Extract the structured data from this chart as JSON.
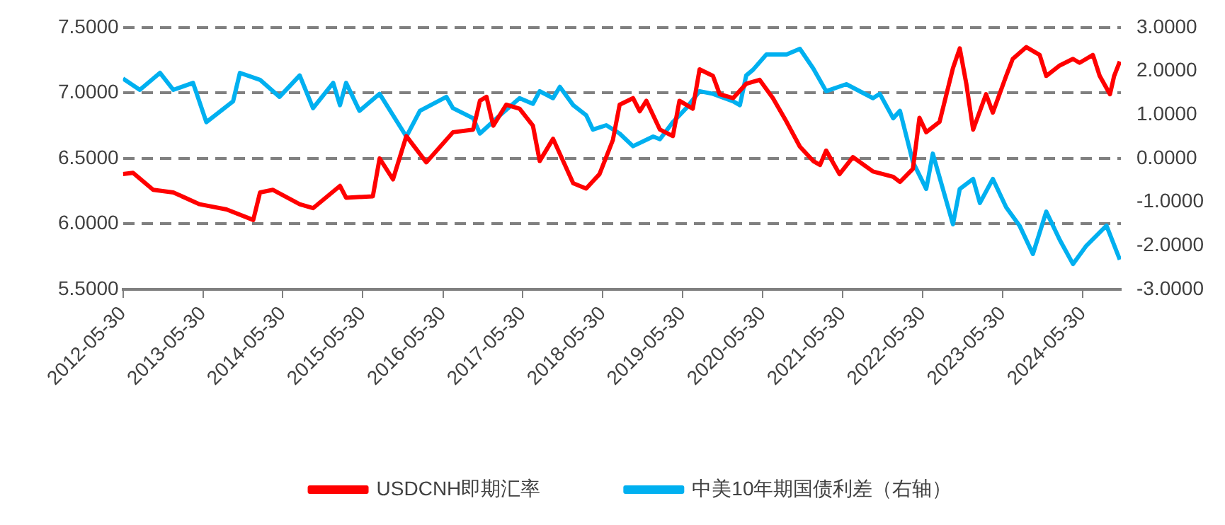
{
  "chart_data": {
    "type": "line",
    "xlim": [
      "2012-05-30",
      "2024-11-20"
    ],
    "xticks": [
      "2012-05-30",
      "2013-05-30",
      "2014-05-30",
      "2015-05-30",
      "2016-05-30",
      "2017-05-30",
      "2018-05-30",
      "2019-05-30",
      "2020-05-30",
      "2021-05-30",
      "2022-05-30",
      "2023-05-30",
      "2024-05-30"
    ],
    "ylim": [
      5.5,
      7.5
    ],
    "yticks": [
      {
        "value": 5.5,
        "label": "5.5000"
      },
      {
        "value": 6,
        "label": "6.0000"
      },
      {
        "value": 6.5,
        "label": "6.5000"
      },
      {
        "value": 7,
        "label": "7.0000"
      },
      {
        "value": 7.5,
        "label": "7.5000"
      }
    ],
    "y2lim": [
      -3,
      3
    ],
    "y2ticks": [
      {
        "value": -3,
        "label": "-3.0000"
      },
      {
        "value": -2,
        "label": "-2.0000"
      },
      {
        "value": -1,
        "label": "-1.0000"
      },
      {
        "value": 0,
        "label": "0.0000"
      },
      {
        "value": 1,
        "label": "1.0000"
      },
      {
        "value": 2,
        "label": "2.0000"
      },
      {
        "value": 3,
        "label": "3.0000"
      }
    ],
    "grid": "y",
    "legend": "bottom",
    "marker": "none",
    "line_style": "solid",
    "series": [
      {
        "name": "USDCNH即期汇率",
        "color": "#ff0000",
        "x": [
          "2012-05-30",
          "2012-07-15",
          "2012-10-15",
          "2013-01-15",
          "2013-05-15",
          "2013-09-15",
          "2014-01-15",
          "2014-02-15",
          "2014-04-15",
          "2014-08-15",
          "2014-10-15",
          "2015-02-15",
          "2015-03-15",
          "2015-07-15",
          "2015-08-15",
          "2015-10-15",
          "2015-12-15",
          "2016-03-15",
          "2016-07-15",
          "2016-10-15",
          "2016-11-15",
          "2016-12-15",
          "2017-01-15",
          "2017-03-15",
          "2017-05-15",
          "2017-07-15",
          "2017-08-15",
          "2017-10-15",
          "2018-01-15",
          "2018-03-15",
          "2018-05-15",
          "2018-07-15",
          "2018-08-15",
          "2018-10-15",
          "2018-11-15",
          "2018-12-15",
          "2019-02-15",
          "2019-04-15",
          "2019-05-15",
          "2019-07-15",
          "2019-08-15",
          "2019-10-15",
          "2019-11-15",
          "2020-01-15",
          "2020-03-15",
          "2020-05-15",
          "2020-07-15",
          "2020-09-15",
          "2020-11-15",
          "2021-01-15",
          "2021-02-15",
          "2021-03-15",
          "2021-05-15",
          "2021-07-15",
          "2021-10-15",
          "2022-01-15",
          "2022-02-15",
          "2022-04-15",
          "2022-05-15",
          "2022-06-15",
          "2022-08-15",
          "2022-10-15",
          "2022-11-15",
          "2022-12-15",
          "2023-01-15",
          "2023-03-15",
          "2023-04-15",
          "2023-06-15",
          "2023-07-15",
          "2023-09-15",
          "2023-11-15",
          "2023-12-15",
          "2024-02-15",
          "2024-04-15",
          "2024-05-15",
          "2024-07-15",
          "2024-08-15",
          "2024-10-01",
          "2024-10-20",
          "2024-11-15"
        ],
        "values": [
          6.38,
          6.39,
          6.26,
          6.24,
          6.15,
          6.11,
          6.03,
          6.24,
          6.26,
          6.15,
          6.12,
          6.29,
          6.2,
          6.21,
          6.5,
          6.34,
          6.67,
          6.47,
          6.7,
          6.72,
          6.94,
          6.97,
          6.75,
          6.91,
          6.88,
          6.75,
          6.48,
          6.65,
          6.31,
          6.27,
          6.38,
          6.64,
          6.91,
          6.96,
          6.86,
          6.94,
          6.72,
          6.67,
          6.94,
          6.88,
          7.18,
          7.13,
          6.99,
          6.96,
          7.07,
          7.1,
          6.96,
          6.78,
          6.59,
          6.48,
          6.45,
          6.56,
          6.38,
          6.51,
          6.4,
          6.36,
          6.32,
          6.42,
          6.81,
          6.7,
          6.78,
          7.19,
          7.34,
          7.07,
          6.72,
          6.99,
          6.85,
          7.13,
          7.26,
          7.35,
          7.29,
          7.13,
          7.21,
          7.26,
          7.23,
          7.29,
          7.13,
          6.99,
          7.13,
          7.24
        ]
      },
      {
        "name": "中美10年期国债利差（右轴）",
        "color": "#00b0f0",
        "axis": "y2",
        "x": [
          "2012-05-30",
          "2012-08-15",
          "2012-11-15",
          "2013-01-15",
          "2013-04-15",
          "2013-06-15",
          "2013-10-15",
          "2013-11-15",
          "2014-02-15",
          "2014-05-15",
          "2014-08-15",
          "2014-10-15",
          "2015-01-15",
          "2015-02-15",
          "2015-03-15",
          "2015-05-15",
          "2015-08-15",
          "2015-12-15",
          "2016-02-15",
          "2016-06-15",
          "2016-07-15",
          "2016-10-15",
          "2016-11-15",
          "2017-02-15",
          "2017-05-15",
          "2017-07-15",
          "2017-08-15",
          "2017-10-15",
          "2017-11-15",
          "2018-01-15",
          "2018-03-15",
          "2018-04-15",
          "2018-06-15",
          "2018-08-15",
          "2018-10-15",
          "2019-01-15",
          "2019-02-15",
          "2019-04-15",
          "2019-06-15",
          "2019-08-15",
          "2019-10-15",
          "2020-01-15",
          "2020-02-15",
          "2020-03-15",
          "2020-04-15",
          "2020-06-15",
          "2020-09-15",
          "2020-11-15",
          "2021-01-15",
          "2021-03-15",
          "2021-06-15",
          "2021-10-15",
          "2021-11-15",
          "2022-01-15",
          "2022-02-15",
          "2022-04-15",
          "2022-06-15",
          "2022-07-15",
          "2022-10-15",
          "2022-11-15",
          "2023-01-15",
          "2023-02-15",
          "2023-04-15",
          "2023-06-15",
          "2023-08-15",
          "2023-10-15",
          "2023-12-15",
          "2024-02-15",
          "2024-04-15",
          "2024-06-15",
          "2024-09-15",
          "2024-11-15"
        ],
        "values": [
          1.83,
          1.57,
          1.96,
          1.57,
          1.73,
          0.83,
          1.31,
          1.96,
          1.8,
          1.41,
          1.9,
          1.15,
          1.73,
          1.22,
          1.73,
          1.09,
          1.48,
          0.5,
          1.09,
          1.41,
          1.15,
          0.92,
          0.57,
          0.99,
          1.38,
          1.25,
          1.54,
          1.38,
          1.64,
          1.22,
          0.99,
          0.66,
          0.76,
          0.57,
          0.28,
          0.5,
          0.44,
          0.83,
          1.15,
          1.54,
          1.48,
          1.31,
          1.22,
          1.9,
          2.03,
          2.38,
          2.38,
          2.51,
          2.06,
          1.54,
          1.7,
          1.38,
          1.48,
          0.92,
          1.09,
          -0.08,
          -0.7,
          0.11,
          -1.51,
          -0.7,
          -0.47,
          -1.02,
          -0.47,
          -1.12,
          -1.54,
          -2.19,
          -1.22,
          -1.87,
          -2.42,
          -2,
          -1.54,
          -2.32
        ]
      }
    ]
  }
}
